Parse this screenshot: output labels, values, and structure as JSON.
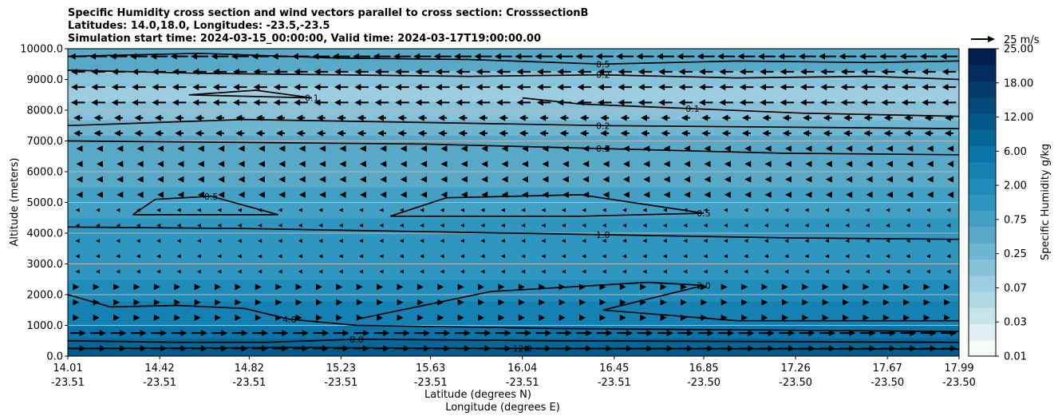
{
  "titles": {
    "line1": "Specific Humidity cross section and wind vectors parallel to cross section: CrosssectionB",
    "line2": "Latitudes: 14.0,18.0, Longitudes: -23.5,-23.5",
    "line3": "Simulation start time: 2024-03-15_00:00:00, Valid time: 2024-03-17T19:00:00.00"
  },
  "colors": {
    "levels": [
      "#f7fbfc",
      "#e0eff3",
      "#c8e3ea",
      "#b0d7e2",
      "#9ccde0",
      "#88c2d9",
      "#6fb6d1",
      "#58a9c8",
      "#43a0c5",
      "#2f96c0",
      "#1f8cba",
      "#1580b2",
      "#0a73a7",
      "#056698",
      "#035a8a",
      "#034b7c",
      "#033c6d",
      "#012c5c",
      "#001f4d"
    ]
  },
  "chart_data": {
    "type": "heatmap",
    "title": "Specific Humidity cross section and wind vectors parallel to cross section: CrosssectionB",
    "ylabel": "Altitude (meters)",
    "xlabel_lat": "Latitude (degrees N)",
    "xlabel_lon": "Longitude (degrees E)",
    "ylim": [
      0,
      10000
    ],
    "y_ticks": [
      "0.0",
      "1000.0",
      "2000.0",
      "3000.0",
      "4000.0",
      "5000.0",
      "6000.0",
      "7000.0",
      "8000.0",
      "9000.0",
      "10000.0"
    ],
    "x_ticks_lat": [
      "14.01",
      "14.42",
      "14.82",
      "15.23",
      "15.63",
      "16.04",
      "16.45",
      "16.85",
      "17.26",
      "17.67",
      "17.99"
    ],
    "x_ticks_lon": [
      "-23.51",
      "-23.51",
      "-23.51",
      "-23.51",
      "-23.51",
      "-23.51",
      "-23.51",
      "-23.50",
      "-23.50",
      "-23.50",
      "-23.50"
    ],
    "grid": "horizontal",
    "colorbar": {
      "label": "Specific Humidity g/kg",
      "ticks": [
        "0.01",
        "0.03",
        "0.07",
        "0.25",
        "0.75",
        "2.00",
        "6.00",
        "12.00",
        "18.00",
        "25.00"
      ]
    },
    "quiver_key": "25 m/s",
    "humidity_bands": [
      {
        "alt": 0,
        "q": 13
      },
      {
        "alt": 250,
        "q": 10
      },
      {
        "alt": 600,
        "q": 5
      },
      {
        "alt": 1000,
        "q": 3
      },
      {
        "alt": 1800,
        "q": 2
      },
      {
        "alt": 2500,
        "q": 1.5
      },
      {
        "alt": 3500,
        "q": 1.0
      },
      {
        "alt": 4500,
        "q": 0.6
      },
      {
        "alt": 5500,
        "q": 0.5
      },
      {
        "alt": 6500,
        "q": 0.45
      },
      {
        "alt": 7200,
        "q": 0.2
      },
      {
        "alt": 7700,
        "q": 0.12
      },
      {
        "alt": 8300,
        "q": 0.07
      },
      {
        "alt": 8800,
        "q": 0.15
      },
      {
        "alt": 9300,
        "q": 0.35
      },
      {
        "alt": 9700,
        "q": 0.5
      },
      {
        "alt": 10000,
        "q": 0.6
      }
    ],
    "contours": [
      {
        "level": "0.5",
        "points": [
          [
            14.01,
            9750
          ],
          [
            14.6,
            9850
          ],
          [
            15.2,
            9700
          ],
          [
            15.8,
            9650
          ],
          [
            16.4,
            9500
          ],
          [
            17.0,
            9600
          ],
          [
            17.6,
            9550
          ],
          [
            17.99,
            9600
          ]
        ]
      },
      {
        "level": "0.2",
        "points": [
          [
            14.01,
            9300
          ],
          [
            14.6,
            9200
          ],
          [
            15.2,
            9150
          ],
          [
            15.8,
            9100
          ],
          [
            16.4,
            9150
          ],
          [
            17.0,
            9050
          ],
          [
            17.6,
            9100
          ],
          [
            17.99,
            9000
          ]
        ]
      },
      {
        "level": "0.1",
        "points": [
          [
            14.55,
            8500
          ],
          [
            14.85,
            8650
          ],
          [
            15.1,
            8400
          ],
          [
            14.55,
            8500
          ]
        ]
      },
      {
        "level": "0.1",
        "points": [
          [
            16.04,
            8400
          ],
          [
            16.3,
            8200
          ],
          [
            16.8,
            8050
          ],
          [
            17.3,
            7900
          ],
          [
            17.99,
            7800
          ]
        ]
      },
      {
        "level": "0.2",
        "points": [
          [
            14.01,
            7500
          ],
          [
            14.8,
            7700
          ],
          [
            15.6,
            7600
          ],
          [
            16.4,
            7500
          ],
          [
            17.2,
            7450
          ],
          [
            17.99,
            7400
          ]
        ]
      },
      {
        "level": "0.5",
        "points": [
          [
            14.01,
            7000
          ],
          [
            14.8,
            6950
          ],
          [
            15.6,
            6900
          ],
          [
            16.4,
            6750
          ],
          [
            17.2,
            6600
          ],
          [
            17.99,
            6550
          ]
        ]
      },
      {
        "level": "0.5",
        "points": [
          [
            14.3,
            4600
          ],
          [
            14.4,
            5100
          ],
          [
            14.65,
            5200
          ],
          [
            14.95,
            4600
          ],
          [
            14.3,
            4600
          ]
        ]
      },
      {
        "level": "0.5",
        "points": [
          [
            15.45,
            4550
          ],
          [
            15.7,
            5150
          ],
          [
            16.3,
            5250
          ],
          [
            16.85,
            4650
          ],
          [
            16.3,
            4550
          ],
          [
            15.45,
            4550
          ]
        ]
      },
      {
        "level": "1.0",
        "points": [
          [
            14.01,
            4200
          ],
          [
            14.8,
            4150
          ],
          [
            15.6,
            4050
          ],
          [
            16.4,
            3950
          ],
          [
            17.2,
            3850
          ],
          [
            17.99,
            3800
          ]
        ]
      },
      {
        "level": "2.0",
        "points": [
          [
            15.3,
            1200
          ],
          [
            15.9,
            2100
          ],
          [
            16.6,
            2400
          ],
          [
            16.85,
            2300
          ],
          [
            16.4,
            1500
          ],
          [
            17.0,
            1150
          ],
          [
            17.99,
            1150
          ]
        ]
      },
      {
        "level": "4.0",
        "points": [
          [
            14.01,
            2000
          ],
          [
            14.2,
            1600
          ],
          [
            14.5,
            1650
          ],
          [
            14.8,
            1550
          ],
          [
            15.0,
            1200
          ],
          [
            15.3,
            1000
          ],
          [
            16.2,
            900
          ],
          [
            17.99,
            800
          ]
        ]
      },
      {
        "level": "8.0",
        "points": [
          [
            14.01,
            500
          ],
          [
            14.5,
            450
          ],
          [
            14.9,
            450
          ],
          [
            15.3,
            550
          ],
          [
            16.2,
            500
          ],
          [
            17.99,
            450
          ]
        ]
      },
      {
        "level": "12.0",
        "points": [
          [
            14.01,
            250
          ],
          [
            15.0,
            280
          ],
          [
            16.04,
            250
          ],
          [
            17.99,
            230
          ]
        ]
      }
    ],
    "wind": [
      {
        "alt_range": [
          9500,
          10000
        ],
        "u": -1.0
      },
      {
        "alt_range": [
          8200,
          9500
        ],
        "u": -0.8
      },
      {
        "alt_range": [
          7000,
          8200
        ],
        "u": -0.5
      },
      {
        "alt_range": [
          5000,
          7000
        ],
        "u": -0.2
      },
      {
        "alt_range": [
          2500,
          5000
        ],
        "u": -0.05
      },
      {
        "alt_range": [
          1000,
          2500
        ],
        "u": 0.15
      },
      {
        "alt_range": [
          0,
          1000
        ],
        "u": 0.9
      }
    ]
  }
}
